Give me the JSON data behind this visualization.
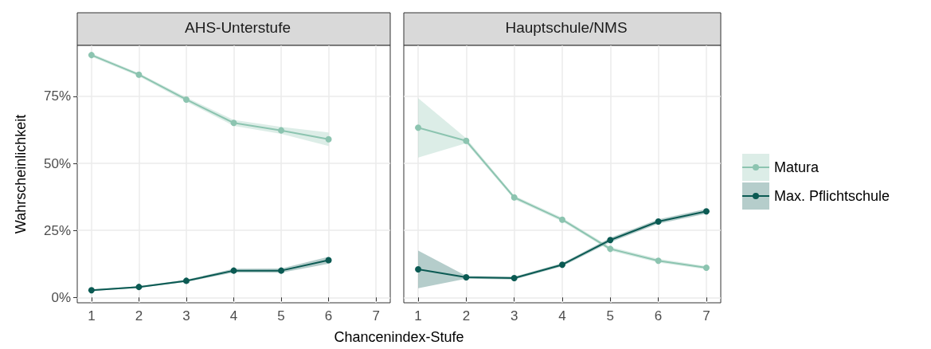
{
  "chart_data": [
    {
      "type": "line",
      "title": "AHS-Unterstufe",
      "xlabel": "Chancenindex-Stufe",
      "ylabel": "Wahrscheinlichkeit",
      "xlim": [
        0.7,
        7.3
      ],
      "xticks": [
        1,
        2,
        3,
        4,
        5,
        6,
        7
      ],
      "ylim": [
        -2,
        94
      ],
      "yticks": [
        {
          "value": 0,
          "label": "0%"
        },
        {
          "value": 25,
          "label": "25%"
        },
        {
          "value": 50,
          "label": "50%"
        },
        {
          "value": 75,
          "label": "75%"
        }
      ],
      "grid": true,
      "legend": "right",
      "marker": "circle",
      "line_style": "solid",
      "series": [
        {
          "name": "Matura",
          "color": "#8cc4b0",
          "x": [
            1,
            2,
            3,
            4,
            5,
            6
          ],
          "values": [
            90.4,
            83.1,
            73.8,
            65.1,
            62.3,
            59.0
          ],
          "lower": [
            89.8,
            82.5,
            73.0,
            64.0,
            61.0,
            56.5
          ],
          "upper": [
            91.0,
            83.7,
            74.6,
            66.2,
            63.6,
            61.5
          ]
        },
        {
          "name": "Max. Pflichtschule",
          "color": "#0b5a53",
          "x": [
            1,
            2,
            3,
            4,
            5,
            6
          ],
          "values": [
            2.7,
            3.9,
            6.2,
            10.0,
            10.0,
            13.9
          ],
          "lower": [
            2.4,
            3.6,
            5.8,
            9.3,
            9.2,
            12.6
          ],
          "upper": [
            3.0,
            4.2,
            6.6,
            10.7,
            10.8,
            15.2
          ]
        }
      ]
    },
    {
      "type": "line",
      "title": "Hauptschule/NMS",
      "xlim": [
        0.7,
        7.3
      ],
      "xticks": [
        1,
        2,
        3,
        4,
        5,
        6,
        7
      ],
      "ylim": [
        -2,
        94
      ],
      "yticks": [
        0,
        25,
        50,
        75
      ],
      "grid": true,
      "tick_labels": "x",
      "marker": "circle",
      "line_style": "solid",
      "series": [
        {
          "color": "#8cc4b0",
          "x": [
            1,
            2,
            3,
            4,
            5,
            6,
            7
          ],
          "values": [
            63.3,
            58.4,
            37.3,
            29.0,
            18.1,
            13.7,
            11.1
          ],
          "lower": [
            52.2,
            57.5,
            36.6,
            28.3,
            17.4,
            13.0,
            10.5
          ],
          "upper": [
            74.3,
            59.4,
            38.0,
            29.7,
            18.8,
            14.4,
            11.7
          ]
        },
        {
          "color": "#0b5a53",
          "x": [
            1,
            2,
            3,
            4,
            5,
            6,
            7
          ],
          "values": [
            10.5,
            7.5,
            7.2,
            12.2,
            21.4,
            28.3,
            32.1
          ],
          "lower": [
            3.4,
            7.0,
            6.7,
            11.6,
            20.6,
            27.5,
            31.2
          ],
          "upper": [
            17.5,
            8.0,
            7.7,
            12.8,
            22.2,
            29.1,
            33.0
          ]
        }
      ]
    }
  ]
}
